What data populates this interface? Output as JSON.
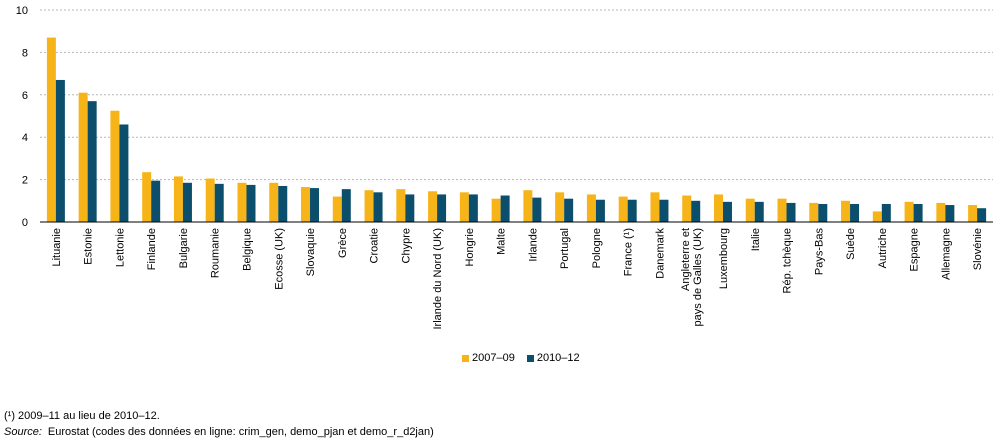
{
  "chart_data": {
    "type": "bar",
    "categories": [
      "Lituanie",
      "Estonie",
      "Lettonie",
      "Finlande",
      "Bulgarie",
      "Roumanie",
      "Belgique",
      "Ecosse (UK)",
      "Slovaquie",
      "Grèce",
      "Croatie",
      "Chypre",
      "Irlande du Nord (UK)",
      "Hongrie",
      "Malte",
      "Irlande",
      "Portugal",
      "Pologne",
      "France (¹)",
      "Danemark",
      "Angleterre et\npays de Galles (UK)",
      "Luxembourg",
      "Italie",
      "Rép. tchèque",
      "Pays-Bas",
      "Suède",
      "Autriche",
      "Espagne",
      "Allemagne",
      "Slovénie"
    ],
    "series": [
      {
        "name": "2007–09",
        "color": "#F6B419",
        "values": [
          8.7,
          6.1,
          5.25,
          2.35,
          2.15,
          2.05,
          1.85,
          1.85,
          1.65,
          1.2,
          1.5,
          1.55,
          1.45,
          1.4,
          1.1,
          1.5,
          1.4,
          1.3,
          1.2,
          1.4,
          1.25,
          1.3,
          1.1,
          1.1,
          0.9,
          1.0,
          0.5,
          0.95,
          0.9,
          0.8
        ]
      },
      {
        "name": "2010–12",
        "color": "#0B4F6C",
        "values": [
          6.7,
          5.7,
          4.6,
          1.95,
          1.85,
          1.8,
          1.75,
          1.7,
          1.6,
          1.55,
          1.4,
          1.3,
          1.3,
          1.3,
          1.25,
          1.15,
          1.1,
          1.05,
          1.05,
          1.05,
          1.0,
          0.95,
          0.95,
          0.9,
          0.85,
          0.85,
          0.85,
          0.85,
          0.8,
          0.65
        ]
      }
    ],
    "yticks": [
      0,
      2,
      4,
      6,
      8,
      10
    ],
    "ylim": [
      0,
      10
    ],
    "grid": true,
    "legend": "bottom-center"
  },
  "footnote": "(¹) 2009–11 au lieu de 2010–12.",
  "source": {
    "label": "Source:",
    "text": "Eurostat (codes des données en ligne: crim_gen, demo_pjan et demo_r_d2jan)"
  }
}
